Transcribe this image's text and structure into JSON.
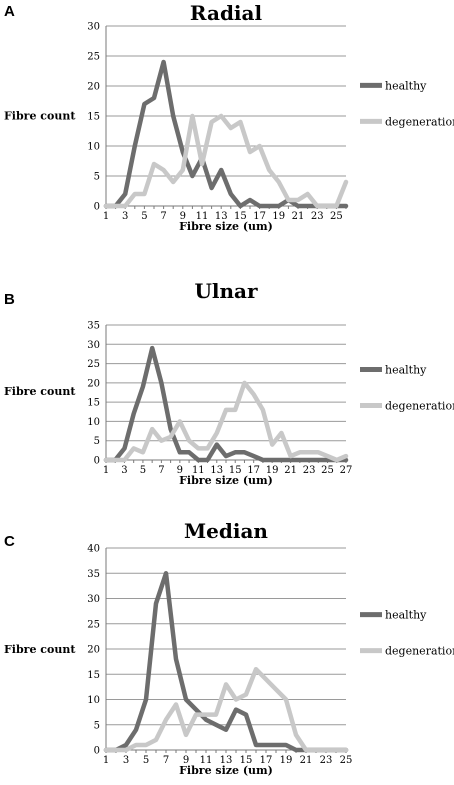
{
  "figure": {
    "panel_labels": [
      "A",
      "B",
      "C"
    ]
  },
  "chart_data": [
    {
      "type": "line",
      "title": "Radial",
      "xlabel": "Fibre size (um)",
      "ylabel": "Fibre count",
      "x": [
        1,
        2,
        3,
        4,
        5,
        6,
        7,
        8,
        9,
        10,
        11,
        12,
        13,
        14,
        15,
        16,
        17,
        18,
        19,
        20,
        21,
        22,
        23,
        24,
        25,
        26
      ],
      "xticks": [
        "1",
        "3",
        "5",
        "7",
        "9",
        "11",
        "13",
        "15",
        "17",
        "19",
        "21",
        "23",
        "25"
      ],
      "ylim": [
        0,
        30
      ],
      "yticks": [
        0,
        5,
        10,
        15,
        20,
        25,
        30
      ],
      "grid": true,
      "legend_position": "right",
      "series": [
        {
          "name": "healthy",
          "color": "#6d6d6d",
          "values": [
            0,
            0,
            2,
            10,
            17,
            18,
            24,
            15,
            9,
            5,
            8,
            3,
            6,
            2,
            0,
            1,
            0,
            0,
            0,
            1,
            0,
            0,
            0,
            0,
            0,
            0
          ]
        },
        {
          "name": "degeneration",
          "color": "#c8c8c8",
          "values": [
            0,
            0,
            0,
            2,
            2,
            7,
            6,
            4,
            6,
            15,
            7,
            14,
            15,
            13,
            14,
            9,
            10,
            6,
            4,
            1,
            1,
            2,
            0,
            0,
            0,
            4
          ]
        }
      ]
    },
    {
      "type": "line",
      "title": "Ulnar",
      "xlabel": "Fibre size (um)",
      "ylabel": "Fibre count",
      "x": [
        1,
        2,
        3,
        4,
        5,
        6,
        7,
        8,
        9,
        10,
        11,
        12,
        13,
        14,
        15,
        16,
        17,
        18,
        19,
        20,
        21,
        22,
        23,
        24,
        25,
        26,
        27
      ],
      "xticks": [
        "1",
        "3",
        "5",
        "7",
        "9",
        "11",
        "13",
        "15",
        "17",
        "19",
        "21",
        "23",
        "25",
        "27"
      ],
      "ylim": [
        0,
        35
      ],
      "yticks": [
        0,
        5,
        10,
        15,
        20,
        25,
        30,
        35
      ],
      "grid": true,
      "legend_position": "right",
      "series": [
        {
          "name": "healthy",
          "color": "#6d6d6d",
          "values": [
            0,
            0,
            3,
            12,
            19,
            29,
            20,
            8,
            2,
            2,
            0,
            0,
            4,
            1,
            2,
            2,
            1,
            0,
            0,
            0,
            0,
            0,
            0,
            0,
            0,
            0,
            0
          ]
        },
        {
          "name": "degeneration",
          "color": "#c8c8c8",
          "values": [
            0,
            0,
            0,
            3,
            2,
            8,
            5,
            6,
            10,
            5,
            3,
            3,
            7,
            13,
            13,
            20,
            17,
            13,
            4,
            7,
            1,
            2,
            2,
            2,
            1,
            0,
            1
          ]
        }
      ]
    },
    {
      "type": "line",
      "title": "Median",
      "xlabel": "Fibre size (um)",
      "ylabel": "Fibre count",
      "x": [
        1,
        2,
        3,
        4,
        5,
        6,
        7,
        8,
        9,
        10,
        11,
        12,
        13,
        14,
        15,
        16,
        17,
        18,
        19,
        20,
        21,
        22,
        23,
        24,
        25
      ],
      "xticks": [
        "1",
        "3",
        "5",
        "7",
        "9",
        "11",
        "13",
        "15",
        "17",
        "19",
        "21",
        "23",
        "25"
      ],
      "ylim": [
        0,
        40
      ],
      "yticks": [
        0,
        5,
        10,
        15,
        20,
        25,
        30,
        35,
        40
      ],
      "grid": true,
      "legend_position": "right",
      "series": [
        {
          "name": "healthy",
          "color": "#6d6d6d",
          "values": [
            0,
            0,
            1,
            4,
            10,
            29,
            35,
            18,
            10,
            8,
            6,
            5,
            4,
            8,
            7,
            1,
            1,
            1,
            1,
            0,
            0,
            0,
            0,
            0,
            0
          ]
        },
        {
          "name": "degeneration",
          "color": "#c8c8c8",
          "values": [
            0,
            0,
            0,
            1,
            1,
            2,
            6,
            9,
            3,
            7,
            7,
            7,
            13,
            10,
            11,
            16,
            14,
            12,
            10,
            3,
            0,
            0,
            0,
            0,
            0
          ]
        }
      ]
    }
  ]
}
